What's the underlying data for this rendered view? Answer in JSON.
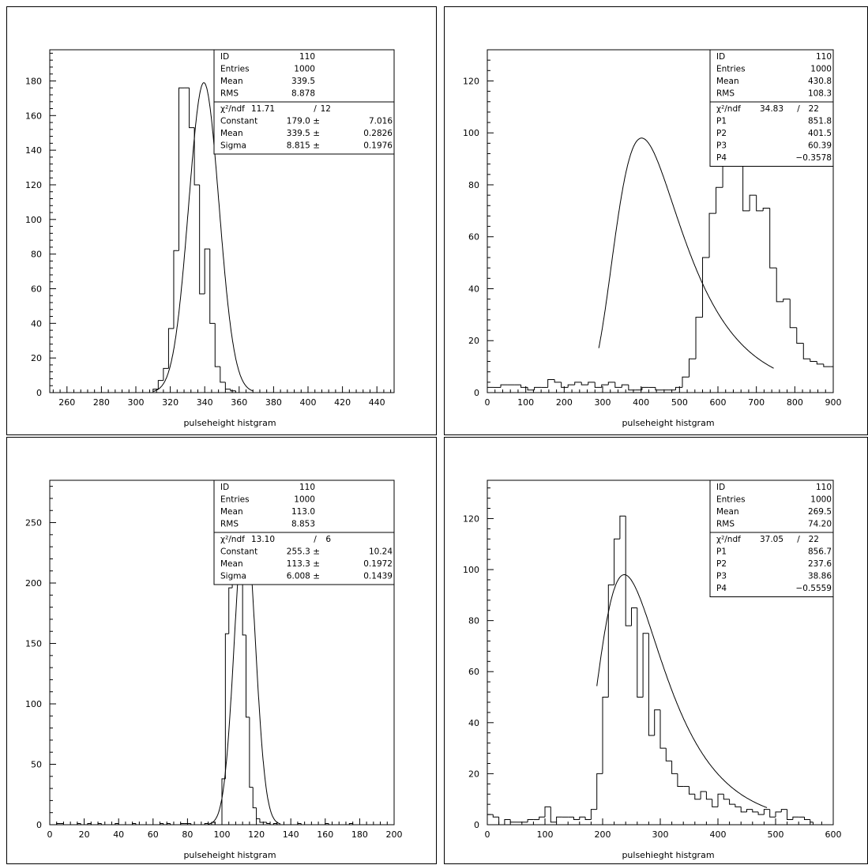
{
  "chart_data": [
    {
      "type": "bar",
      "xlabel": "pulseheight histgram",
      "xlim": [
        250,
        450
      ],
      "ylim": [
        0,
        198
      ],
      "xticks": [
        260,
        280,
        300,
        320,
        340,
        360,
        380,
        400,
        420,
        440
      ],
      "yticks": [
        0,
        20,
        40,
        60,
        80,
        100,
        120,
        140,
        160,
        180
      ],
      "bin_start": 310,
      "bin_width": 3,
      "values": [
        2,
        7,
        14,
        37,
        82,
        176,
        176,
        153,
        120,
        57,
        83,
        40,
        15,
        6,
        2,
        1
      ],
      "fit": {
        "type": "gauss",
        "constant": 179.0,
        "mean": 339.5,
        "sigma": 8.815,
        "range": [
          310,
          368
        ]
      },
      "stats": [
        [
          "ID",
          "110"
        ],
        [
          "Entries",
          "1000"
        ],
        [
          "Mean",
          "339.5"
        ],
        [
          "RMS",
          "8.878"
        ]
      ],
      "fit_header": [
        "χ²/ndf",
        "11.71",
        "/",
        "12"
      ],
      "fit_rows": [
        [
          "Constant",
          "179.0 ±",
          "7.016"
        ],
        [
          "Mean",
          "339.5 ±",
          "0.2826"
        ],
        [
          "Sigma",
          "8.815 ±",
          "0.1976"
        ]
      ]
    },
    {
      "type": "bar",
      "xlabel": "pulseheight histgram",
      "xlim": [
        0,
        900
      ],
      "ylim": [
        0,
        132
      ],
      "xticks": [
        0,
        100,
        200,
        300,
        400,
        500,
        600,
        700,
        800,
        900
      ],
      "yticks": [
        0,
        20,
        40,
        60,
        80,
        100,
        120
      ],
      "bin_start": 0,
      "bin_width": 17.5,
      "values": [
        2,
        2,
        3,
        3,
        3,
        2,
        1,
        2,
        2,
        5,
        4,
        2,
        3,
        4,
        3,
        4,
        2,
        3,
        4,
        2,
        3,
        1,
        1,
        2,
        2,
        1,
        1,
        1,
        2,
        6,
        13,
        29,
        52,
        69,
        79,
        92,
        107,
        118,
        70,
        76,
        70,
        71,
        48,
        35,
        36,
        25,
        19,
        13,
        12,
        11,
        10,
        10,
        9,
        8,
        7,
        5,
        4,
        3,
        3,
        4,
        2,
        2,
        1,
        1,
        2,
        2,
        3,
        2,
        1,
        2,
        3,
        3,
        4,
        2,
        2,
        1,
        1,
        1,
        2,
        1,
        2,
        1,
        1,
        2,
        3,
        2,
        3,
        2,
        1,
        2,
        1,
        1,
        1,
        1,
        1
      ],
      "bins_until": 870,
      "fit": {
        "type": "landau",
        "constant": 851.8,
        "mpv": 401.5,
        "sigma": 60.39,
        "range": [
          290,
          745
        ]
      },
      "stats": [
        [
          "ID",
          "110"
        ],
        [
          "Entries",
          "1000"
        ],
        [
          "Mean",
          "430.8"
        ],
        [
          "RMS",
          "108.3"
        ]
      ],
      "fit_header": [
        "χ²/ndf",
        "34.83",
        "/",
        "22"
      ],
      "fit_rows": [
        [
          "P1",
          "",
          "851.8"
        ],
        [
          "P2",
          "",
          "401.5"
        ],
        [
          "P3",
          "",
          "60.39"
        ],
        [
          "P4",
          "",
          "−0.3578"
        ]
      ]
    },
    {
      "type": "bar",
      "xlabel": "pulseheight histgram",
      "xlim": [
        0,
        200
      ],
      "ylim": [
        0,
        285
      ],
      "xticks": [
        0,
        20,
        40,
        60,
        80,
        100,
        120,
        140,
        160,
        180,
        200
      ],
      "yticks": [
        0,
        50,
        100,
        150,
        200,
        250
      ],
      "bin_start": 0,
      "bin_width": 2,
      "values": [
        0,
        0,
        1,
        1,
        0,
        0,
        0,
        0,
        1,
        0,
        0,
        1,
        0,
        0,
        1,
        0,
        0,
        0,
        0,
        1,
        0,
        0,
        0,
        0,
        1,
        0,
        0,
        0,
        0,
        0,
        0,
        0,
        1,
        0,
        1,
        0,
        0,
        0,
        1,
        1,
        1,
        0,
        0,
        0,
        0,
        1,
        0,
        2,
        0,
        0,
        38,
        158,
        196,
        210,
        256,
        228,
        157,
        89,
        31,
        14,
        5,
        2,
        2,
        1,
        0,
        1,
        0,
        0,
        0,
        0,
        0,
        0,
        1,
        0,
        0,
        0,
        0,
        0,
        0,
        0,
        1,
        0,
        0,
        0,
        0,
        0,
        0,
        1,
        0,
        0,
        0,
        0,
        0,
        0,
        0,
        0,
        0,
        0,
        0,
        0
      ],
      "bins_until": 200,
      "shift_peak_start": 100,
      "fit": {
        "type": "gauss",
        "constant": 255.3,
        "mean": 113.3,
        "sigma": 6.008,
        "range": [
          92,
          134
        ]
      },
      "stats": [
        [
          "ID",
          "110"
        ],
        [
          "Entries",
          "1000"
        ],
        [
          "Mean",
          "113.0"
        ],
        [
          "RMS",
          "8.853"
        ]
      ],
      "fit_header": [
        "χ²/ndf",
        "13.10",
        "/",
        "6"
      ],
      "fit_rows": [
        [
          "Constant",
          "255.3 ±",
          "10.24"
        ],
        [
          "Mean",
          "113.3 ±",
          "0.1972"
        ],
        [
          "Sigma",
          "6.008 ±",
          "0.1439"
        ]
      ]
    },
    {
      "type": "bar",
      "xlabel": "pulsehieght histgram",
      "xlim": [
        0,
        600
      ],
      "ylim": [
        0,
        135
      ],
      "xticks": [
        0,
        100,
        200,
        300,
        400,
        500,
        600
      ],
      "yticks": [
        0,
        20,
        40,
        60,
        80,
        100,
        120
      ],
      "bin_start": 0,
      "bin_width": 10,
      "values": [
        4,
        3,
        0,
        2,
        1,
        1,
        1,
        2,
        2,
        3,
        7,
        1,
        3,
        3,
        3,
        2,
        3,
        2,
        6,
        20,
        50,
        94,
        112,
        121,
        78,
        85,
        50,
        75,
        35,
        45,
        30,
        25,
        20,
        15,
        15,
        12,
        10,
        13,
        10,
        7,
        12,
        10,
        8,
        7,
        5,
        6,
        5,
        4,
        6,
        3,
        5,
        6,
        2,
        3,
        3,
        2,
        1
      ],
      "bins_until": 565,
      "fit": {
        "type": "landau",
        "constant": 856.7,
        "mpv": 237.6,
        "sigma": 38.86,
        "range": [
          190,
          485
        ]
      },
      "stats": [
        [
          "ID",
          "110"
        ],
        [
          "Entries",
          "1000"
        ],
        [
          "Mean",
          "269.5"
        ],
        [
          "RMS",
          "74.20"
        ]
      ],
      "fit_header": [
        "χ²/ndf",
        "37.05",
        "/",
        "22"
      ],
      "fit_rows": [
        [
          "P1",
          "",
          "856.7"
        ],
        [
          "P2",
          "",
          "237.6"
        ],
        [
          "P3",
          "",
          "38.86"
        ],
        [
          "P4",
          "",
          "−0.5559"
        ]
      ]
    }
  ]
}
